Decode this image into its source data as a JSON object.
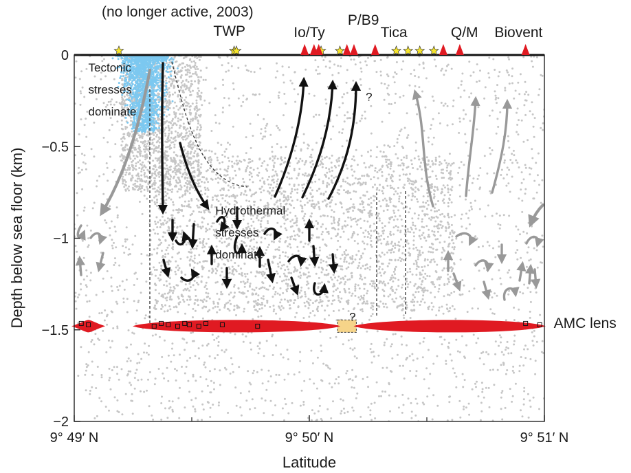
{
  "chart_data": {
    "type": "scatter",
    "xlabel": "Latitude",
    "ylabel": "Depth below sea floor (km)",
    "xlim": [
      0,
      2
    ],
    "ylim": [
      -2,
      0
    ],
    "x_ticks": [
      {
        "value": 0,
        "label": "9° 49′ N"
      },
      {
        "value": 1,
        "label": "9° 50′ N"
      },
      {
        "value": 2,
        "label": "9° 51′ N"
      }
    ],
    "y_ticks": [
      {
        "value": 0,
        "label": "0"
      },
      {
        "value": -0.5,
        "label": "−0.5"
      },
      {
        "value": -1,
        "label": "−1"
      },
      {
        "value": -1.5,
        "label": "−1.5"
      },
      {
        "value": -2,
        "label": "−2"
      }
    ],
    "header_note": "(no longer active, 2003)",
    "vent_labels": [
      {
        "text": "TWP",
        "x": 0.66
      },
      {
        "text": "Io/Ty",
        "x": 1.0
      },
      {
        "text": "P/B9",
        "x": 1.23
      },
      {
        "text": "Tica",
        "x": 1.36
      },
      {
        "text": "Q/M",
        "x": 1.66
      },
      {
        "text": "Biovent",
        "x": 1.89
      }
    ],
    "stars": [
      0.19,
      0.68,
      0.69,
      1.05,
      1.13,
      1.37,
      1.42,
      1.47,
      1.53
    ],
    "vents": [
      0.98,
      1.02,
      1.04,
      1.16,
      1.19,
      1.28,
      1.57,
      1.64,
      1.92
    ],
    "annotations": [
      {
        "text": "Tectonic",
        "x": 0.06,
        "y": -0.09
      },
      {
        "text": "stresses",
        "x": 0.06,
        "y": -0.21
      },
      {
        "text": "dominate",
        "x": 0.06,
        "y": -0.33
      },
      {
        "text": "Hydrothermal",
        "x": 0.6,
        "y": -0.87
      },
      {
        "text": "stresses",
        "x": 0.6,
        "y": -0.99
      },
      {
        "text": "dominate",
        "x": 0.6,
        "y": -1.11
      },
      {
        "text": "AMC lens",
        "x": 2.04,
        "y": -1.49
      },
      {
        "text": "?",
        "x": 1.17,
        "y": -1.45
      },
      {
        "text": "?",
        "x": 1.24,
        "y": -0.25
      }
    ],
    "amc_lens": {
      "depth": -1.48,
      "segments": [
        [
          0,
          0.12
        ],
        [
          0.26,
          1.12
        ],
        [
          1.2,
          2.0
        ]
      ],
      "gap": [
        1.12,
        1.2
      ]
    },
    "earthquake_clusters": [
      {
        "name": "shallow",
        "x_center": 0.3,
        "x_spread": 0.05,
        "depth_top": 0,
        "depth_bottom": -0.45,
        "color": "#7cc8f0"
      },
      {
        "name": "background",
        "x_range": [
          0,
          2
        ],
        "depth_top": 0,
        "depth_bottom": -2,
        "color": "#c6c6c6"
      }
    ],
    "colors": {
      "background_points": "#c6c6c6",
      "tectonic_points": "#7cc8f0",
      "amc_lens": "#e01a22",
      "amc_gap": "#f6d489",
      "star": "#f6e52c",
      "vent": "#e01a22",
      "arrow_dark": "#111111",
      "arrow_light": "#999999"
    }
  }
}
